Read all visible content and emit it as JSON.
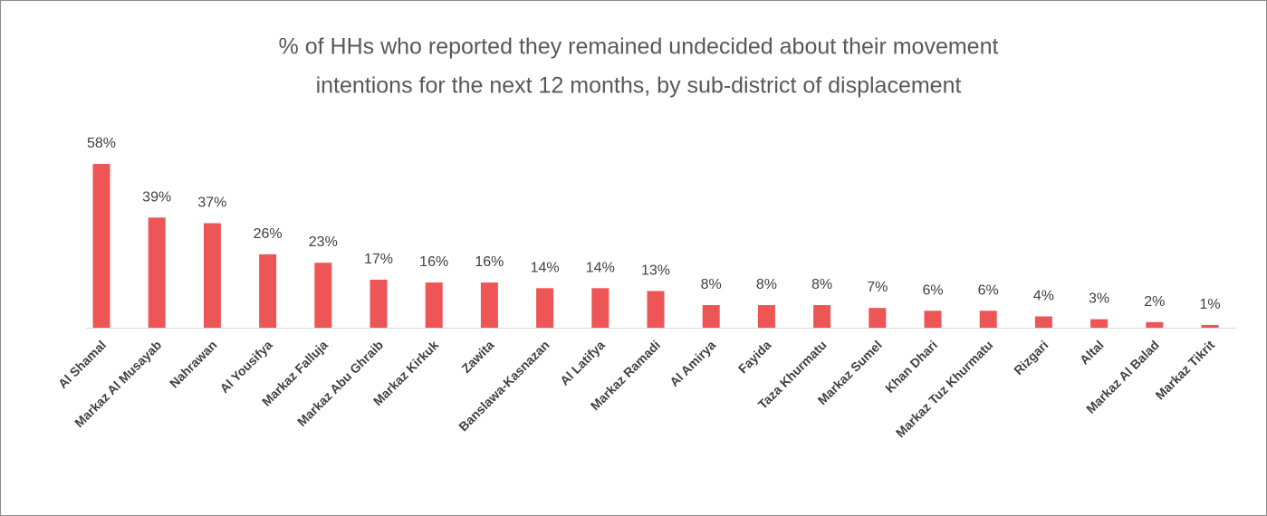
{
  "chart_data": {
    "type": "bar",
    "title": [
      "% of HHs who reported they remained undecided about their movement",
      "intentions for the next 12 months, by sub-district of displacement"
    ],
    "categories": [
      "Al Shamal",
      "Markaz Al Musayab",
      "Nahrawan",
      "Al Yousifya",
      "Markaz Falluja",
      "Markaz Abu Ghraib",
      "Markaz Kirkuk",
      "Zawita",
      "Banslawa-Kasnazan",
      "Al Latifya",
      "Markaz Ramadi",
      "Al Amirya",
      "Fayida",
      "Taza Khurmatu",
      "Markaz Sumel",
      "Khan Dhari",
      "Markaz Tuz Khurmatu",
      "Rizgari",
      "Altal",
      "Markaz Al Balad",
      "Markaz Tikrit"
    ],
    "values": [
      58,
      39,
      37,
      26,
      23,
      17,
      16,
      16,
      14,
      14,
      13,
      8,
      8,
      8,
      7,
      6,
      6,
      4,
      3,
      2,
      1
    ],
    "value_labels": [
      "58%",
      "39%",
      "37%",
      "26%",
      "23%",
      "17%",
      "16%",
      "16%",
      "14%",
      "14%",
      "13%",
      "8%",
      "8%",
      "8%",
      "7%",
      "6%",
      "6%",
      "4%",
      "3%",
      "2%",
      "1%"
    ],
    "color": "#ee5556"
  }
}
